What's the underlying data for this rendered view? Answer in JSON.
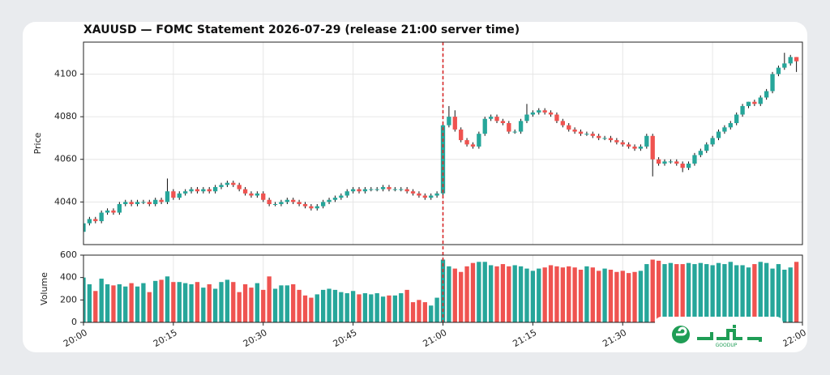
{
  "chart_data": {
    "type": "candlestick",
    "title": "XAUUSD — FOMC Statement 2026-07-29 (release 21:00 server time)",
    "ylabel": "Price",
    "volume_ylabel": "Volume",
    "x": [
      "20:00",
      "20:01",
      "20:02",
      "20:03",
      "20:04",
      "20:05",
      "20:06",
      "20:07",
      "20:08",
      "20:09",
      "20:10",
      "20:11",
      "20:12",
      "20:13",
      "20:14",
      "20:15",
      "20:16",
      "20:17",
      "20:18",
      "20:19",
      "20:20",
      "20:21",
      "20:22",
      "20:23",
      "20:24",
      "20:25",
      "20:26",
      "20:27",
      "20:28",
      "20:29",
      "20:30",
      "20:31",
      "20:32",
      "20:33",
      "20:34",
      "20:35",
      "20:36",
      "20:37",
      "20:38",
      "20:39",
      "20:40",
      "20:41",
      "20:42",
      "20:43",
      "20:44",
      "20:45",
      "20:46",
      "20:47",
      "20:48",
      "20:49",
      "20:50",
      "20:51",
      "20:52",
      "20:53",
      "20:54",
      "20:55",
      "20:56",
      "20:57",
      "20:58",
      "20:59",
      "21:00",
      "21:01",
      "21:02",
      "21:03",
      "21:04",
      "21:05",
      "21:06",
      "21:07",
      "21:08",
      "21:09",
      "21:10",
      "21:11",
      "21:12",
      "21:13",
      "21:14",
      "21:15",
      "21:16",
      "21:17",
      "21:18",
      "21:19",
      "21:20",
      "21:21",
      "21:22",
      "21:23",
      "21:24",
      "21:25",
      "21:26",
      "21:27",
      "21:28",
      "21:29",
      "21:30",
      "21:31",
      "21:32",
      "21:33",
      "21:34",
      "21:35",
      "21:36",
      "21:37",
      "21:38",
      "21:39",
      "21:40",
      "21:41",
      "21:42",
      "21:43",
      "21:44",
      "21:45",
      "21:46",
      "21:47",
      "21:48",
      "21:49",
      "21:50",
      "21:51",
      "21:52",
      "21:53",
      "21:54",
      "21:55",
      "21:56",
      "21:57",
      "21:58",
      "21:59"
    ],
    "open": [
      4026,
      4030,
      4032,
      4031,
      4035,
      4036,
      4035,
      4039,
      4040,
      4039,
      4040,
      4040,
      4039,
      4041,
      4040,
      4045,
      4042,
      4044,
      4045,
      4046,
      4045,
      4046,
      4045,
      4047,
      4048,
      4049,
      4048,
      4046,
      4044,
      4043,
      4044,
      4041,
      4039,
      4039,
      4040,
      4041,
      4040,
      4039,
      4038,
      4037,
      4038,
      4040,
      4041,
      4042,
      4043,
      4045,
      4046,
      4045,
      4046,
      4046,
      4046,
      4047,
      4046,
      4046,
      4046,
      4045,
      4044,
      4043,
      4042,
      4043,
      4044,
      4076,
      4080,
      4074,
      4069,
      4067,
      4066,
      4072,
      4079,
      4080,
      4078,
      4077,
      4073,
      4073,
      4078,
      4081,
      4082,
      4083,
      4082,
      4081,
      4078,
      4076,
      4074,
      4073,
      4072,
      4072,
      4071,
      4070,
      4070,
      4069,
      4068,
      4067,
      4066,
      4065,
      4066,
      4071,
      4060,
      4058,
      4059,
      4059,
      4058,
      4056,
      4058,
      4062,
      4064,
      4067,
      4070,
      4073,
      4075,
      4077,
      4081,
      4085,
      4087,
      4086,
      4089,
      4092,
      4100,
      4103,
      4105,
      4108
    ],
    "high": [
      4031,
      4033,
      4033,
      4036,
      4037,
      4037,
      4040,
      4041,
      4041,
      4041,
      4041,
      4041,
      4042,
      4042,
      4051,
      4046,
      4045,
      4046,
      4047,
      4047,
      4047,
      4047,
      4048,
      4049,
      4050,
      4050,
      4049,
      4047,
      4045,
      4045,
      4045,
      4042,
      4040,
      4041,
      4042,
      4042,
      4041,
      4040,
      4039,
      4039,
      4041,
      4042,
      4043,
      4044,
      4046,
      4047,
      4047,
      4047,
      4047,
      4047,
      4048,
      4048,
      4047,
      4047,
      4047,
      4046,
      4045,
      4044,
      4044,
      4045,
      4077,
      4085,
      4083,
      4075,
      4070,
      4068,
      4073,
      4080,
      4081,
      4081,
      4079,
      4078,
      4074,
      4079,
      4086,
      4083,
      4084,
      4084,
      4083,
      4082,
      4079,
      4077,
      4075,
      4074,
      4073,
      4073,
      4072,
      4071,
      4071,
      4070,
      4069,
      4068,
      4067,
      4067,
      4072,
      4072,
      4061,
      4060,
      4060,
      4060,
      4059,
      4059,
      4063,
      4065,
      4068,
      4071,
      4074,
      4076,
      4078,
      4082,
      4086,
      4087,
      4088,
      4090,
      4093,
      4101,
      4104,
      4110,
      4109,
      4108
    ],
    "low": [
      4025,
      4029,
      4030,
      4030,
      4034,
      4034,
      4034,
      4038,
      4038,
      4038,
      4039,
      4038,
      4038,
      4039,
      4039,
      4041,
      4041,
      4043,
      4044,
      4044,
      4044,
      4044,
      4044,
      4046,
      4047,
      4047,
      4045,
      4043,
      4042,
      4042,
      4040,
      4038,
      4038,
      4038,
      4039,
      4039,
      4038,
      4037,
      4036,
      4036,
      4037,
      4039,
      4040,
      4041,
      4042,
      4044,
      4044,
      4044,
      4045,
      4045,
      4045,
      4045,
      4045,
      4045,
      4044,
      4043,
      4042,
      4041,
      4041,
      4042,
      4043,
      4075,
      4073,
      4068,
      4066,
      4065,
      4065,
      4071,
      4078,
      4077,
      4076,
      4072,
      4072,
      4072,
      4077,
      4080,
      4081,
      4081,
      4080,
      4077,
      4075,
      4073,
      4072,
      4071,
      4071,
      4070,
      4069,
      4069,
      4068,
      4067,
      4066,
      4065,
      4064,
      4064,
      4065,
      4052,
      4057,
      4057,
      4058,
      4057,
      4054,
      4055,
      4057,
      4061,
      4063,
      4066,
      4069,
      4072,
      4074,
      4076,
      4080,
      4084,
      4085,
      4085,
      4088,
      4091,
      4099,
      4102,
      4104,
      4101
    ],
    "close": [
      4030,
      4032,
      4031,
      4035,
      4036,
      4035,
      4039,
      4040,
      4039,
      4040,
      4040,
      4039,
      4041,
      4040,
      4045,
      4042,
      4044,
      4045,
      4046,
      4045,
      4046,
      4045,
      4047,
      4048,
      4049,
      4048,
      4046,
      4044,
      4043,
      4044,
      4041,
      4039,
      4039,
      4040,
      4041,
      4040,
      4039,
      4038,
      4037,
      4038,
      4040,
      4041,
      4042,
      4043,
      4045,
      4046,
      4045,
      4046,
      4046,
      4046,
      4047,
      4046,
      4046,
      4046,
      4045,
      4044,
      4043,
      4042,
      4043,
      4044,
      4076,
      4080,
      4074,
      4069,
      4067,
      4066,
      4072,
      4079,
      4080,
      4078,
      4077,
      4073,
      4073,
      4078,
      4081,
      4082,
      4083,
      4082,
      4081,
      4078,
      4076,
      4074,
      4073,
      4072,
      4072,
      4071,
      4070,
      4070,
      4069,
      4068,
      4067,
      4066,
      4065,
      4066,
      4071,
      4060,
      4058,
      4059,
      4059,
      4058,
      4056,
      4058,
      4062,
      4064,
      4067,
      4070,
      4073,
      4075,
      4077,
      4081,
      4085,
      4087,
      4086,
      4089,
      4092,
      4100,
      4103,
      4105,
      4108,
      4106
    ],
    "volume": [
      400,
      340,
      280,
      390,
      340,
      330,
      340,
      320,
      350,
      320,
      350,
      270,
      370,
      380,
      410,
      360,
      360,
      350,
      340,
      360,
      310,
      340,
      300,
      360,
      380,
      360,
      270,
      340,
      310,
      350,
      290,
      410,
      300,
      330,
      330,
      340,
      290,
      240,
      220,
      250,
      290,
      300,
      290,
      270,
      260,
      280,
      250,
      260,
      250,
      260,
      230,
      240,
      240,
      260,
      290,
      180,
      200,
      180,
      150,
      220,
      560,
      500,
      480,
      450,
      500,
      530,
      540,
      540,
      510,
      500,
      520,
      500,
      510,
      500,
      480,
      460,
      480,
      490,
      510,
      500,
      490,
      500,
      490,
      470,
      500,
      490,
      460,
      480,
      470,
      450,
      460,
      440,
      450,
      460,
      520,
      560,
      550,
      520,
      530,
      520,
      520,
      530,
      520,
      530,
      520,
      510,
      530,
      520,
      540,
      510,
      510,
      490,
      520,
      540,
      530,
      480,
      520,
      470,
      490,
      540
    ],
    "xlim": [
      "20:00",
      "22:00"
    ],
    "xticks": [
      "20:00",
      "20:15",
      "20:30",
      "20:45",
      "21:00",
      "21:15",
      "21:30",
      "21:45",
      "22:00"
    ],
    "ylim": [
      4020,
      4115
    ],
    "yticks": [
      4040,
      4060,
      4080,
      4100
    ],
    "volume_ylim": [
      0,
      600
    ],
    "volume_yticks": [
      0,
      200,
      400,
      600
    ],
    "up_color": "#26a69a",
    "down_color": "#ef5350",
    "event_time": "21:00",
    "event_color": "#d62728",
    "grid": true
  },
  "watermark": "GOODUP"
}
